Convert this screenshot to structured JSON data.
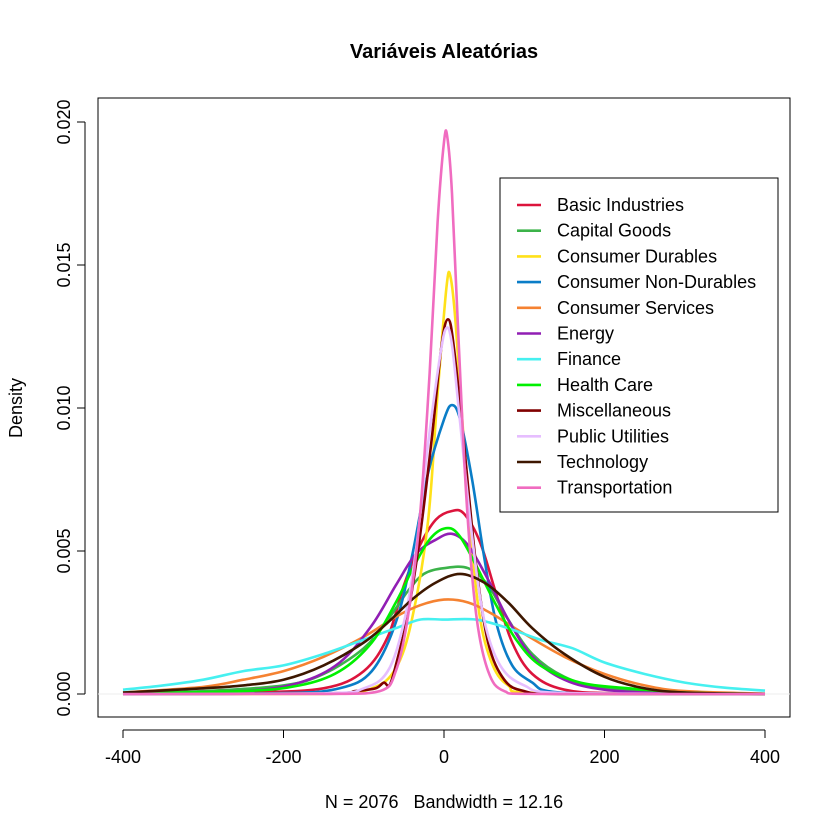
{
  "chart_data": {
    "type": "line",
    "title": "Variáveis Aleatórias",
    "xlabel": "N = 2076   Bandwidth = 12.16",
    "ylabel": "Density",
    "xlim": [
      -400,
      400
    ],
    "ylim": [
      0,
      0.02
    ],
    "x_ticks": [
      "-400",
      "-200",
      "0",
      "200",
      "400"
    ],
    "y_ticks": [
      "0.000",
      "0.005",
      "0.010",
      "0.015",
      "0.020"
    ],
    "grid": false,
    "legend_position": "top-right",
    "series": [
      {
        "name": "Basic Industries",
        "color": "#DC143C",
        "points": [
          [
            -400,
            0
          ],
          [
            -250,
            5e-05
          ],
          [
            -150,
            0.0002
          ],
          [
            -100,
            0.0008
          ],
          [
            -70,
            0.002
          ],
          [
            -50,
            0.0038
          ],
          [
            -30,
            0.0052
          ],
          [
            -10,
            0.0061
          ],
          [
            10,
            0.0064
          ],
          [
            25,
            0.0063
          ],
          [
            45,
            0.0053
          ],
          [
            65,
            0.0035
          ],
          [
            85,
            0.0018
          ],
          [
            110,
            0.0007
          ],
          [
            150,
            0.00015
          ],
          [
            220,
            2e-05
          ],
          [
            400,
            0
          ]
        ]
      },
      {
        "name": "Capital Goods",
        "color": "#3CB34A",
        "points": [
          [
            -400,
            2e-05
          ],
          [
            -300,
            0.0001
          ],
          [
            -200,
            0.0003
          ],
          [
            -150,
            0.0007
          ],
          [
            -100,
            0.0016
          ],
          [
            -70,
            0.0026
          ],
          [
            -45,
            0.0036
          ],
          [
            -25,
            0.0042
          ],
          [
            0,
            0.0044
          ],
          [
            30,
            0.0044
          ],
          [
            55,
            0.0038
          ],
          [
            80,
            0.0026
          ],
          [
            110,
            0.0014
          ],
          [
            150,
            0.0006
          ],
          [
            200,
            0.0002
          ],
          [
            300,
            4e-05
          ],
          [
            400,
            0
          ]
        ]
      },
      {
        "name": "Consumer Durables",
        "color": "#FFE119",
        "points": [
          [
            -400,
            0
          ],
          [
            -150,
            0
          ],
          [
            -90,
            0.0002
          ],
          [
            -60,
            0.0009
          ],
          [
            -40,
            0.0026
          ],
          [
            -20,
            0.006
          ],
          [
            -8,
            0.0105
          ],
          [
            3,
            0.0142
          ],
          [
            8,
            0.0146
          ],
          [
            15,
            0.0128
          ],
          [
            28,
            0.0075
          ],
          [
            42,
            0.0032
          ],
          [
            58,
            0.0012
          ],
          [
            80,
            0.0003
          ],
          [
            120,
            3e-05
          ],
          [
            400,
            0
          ]
        ]
      },
      {
        "name": "Consumer Non-Durables",
        "color": "#0A7DC7",
        "points": [
          [
            -400,
            0
          ],
          [
            -200,
            3e-05
          ],
          [
            -130,
            0.0002
          ],
          [
            -90,
            0.0008
          ],
          [
            -60,
            0.0025
          ],
          [
            -40,
            0.0048
          ],
          [
            -20,
            0.0077
          ],
          [
            0,
            0.0096
          ],
          [
            10,
            0.0101
          ],
          [
            20,
            0.0096
          ],
          [
            35,
            0.0075
          ],
          [
            50,
            0.0048
          ],
          [
            65,
            0.0025
          ],
          [
            85,
            0.001
          ],
          [
            110,
            0.0004
          ],
          [
            130,
            0.0001
          ],
          [
            200,
            1e-05
          ],
          [
            400,
            0
          ]
        ]
      },
      {
        "name": "Consumer Services",
        "color": "#F58231",
        "points": [
          [
            -400,
            5e-05
          ],
          [
            -300,
            0.00025
          ],
          [
            -250,
            0.0005
          ],
          [
            -200,
            0.0008
          ],
          [
            -150,
            0.0013
          ],
          [
            -100,
            0.002
          ],
          [
            -60,
            0.0027
          ],
          [
            -30,
            0.0031
          ],
          [
            0,
            0.0033
          ],
          [
            30,
            0.0032
          ],
          [
            60,
            0.0028
          ],
          [
            100,
            0.0021
          ],
          [
            150,
            0.0013
          ],
          [
            200,
            0.0007
          ],
          [
            250,
            0.0003
          ],
          [
            300,
            0.0001
          ],
          [
            400,
            1e-05
          ]
        ]
      },
      {
        "name": "Energy",
        "color": "#911EB4",
        "points": [
          [
            -400,
            0
          ],
          [
            -250,
            0.0001
          ],
          [
            -180,
            0.0004
          ],
          [
            -130,
            0.0011
          ],
          [
            -90,
            0.0024
          ],
          [
            -60,
            0.0038
          ],
          [
            -35,
            0.0049
          ],
          [
            -10,
            0.0054
          ],
          [
            10,
            0.0056
          ],
          [
            30,
            0.0052
          ],
          [
            55,
            0.004
          ],
          [
            80,
            0.0026
          ],
          [
            110,
            0.0013
          ],
          [
            150,
            0.0005
          ],
          [
            200,
            0.00015
          ],
          [
            280,
            2e-05
          ],
          [
            400,
            0
          ]
        ]
      },
      {
        "name": "Finance",
        "color": "#46F0F0",
        "points": [
          [
            -400,
            0.00015
          ],
          [
            -350,
            0.0003
          ],
          [
            -300,
            0.0005
          ],
          [
            -250,
            0.0008
          ],
          [
            -200,
            0.001
          ],
          [
            -150,
            0.0014
          ],
          [
            -100,
            0.0019
          ],
          [
            -60,
            0.0023
          ],
          [
            -30,
            0.0026
          ],
          [
            0,
            0.0026
          ],
          [
            40,
            0.0026
          ],
          [
            80,
            0.0023
          ],
          [
            120,
            0.0019
          ],
          [
            160,
            0.0016
          ],
          [
            200,
            0.0011
          ],
          [
            250,
            0.0007
          ],
          [
            300,
            0.0004
          ],
          [
            350,
            0.00022
          ],
          [
            400,
            0.00012
          ]
        ]
      },
      {
        "name": "Health Care",
        "color": "#00F000",
        "points": [
          [
            -400,
            2e-05
          ],
          [
            -250,
            0.0001
          ],
          [
            -180,
            0.0003
          ],
          [
            -130,
            0.0008
          ],
          [
            -90,
            0.0018
          ],
          [
            -60,
            0.0032
          ],
          [
            -35,
            0.0046
          ],
          [
            -15,
            0.0055
          ],
          [
            5,
            0.0058
          ],
          [
            20,
            0.0055
          ],
          [
            40,
            0.0045
          ],
          [
            65,
            0.0031
          ],
          [
            90,
            0.0019
          ],
          [
            120,
            0.001
          ],
          [
            170,
            0.0004
          ],
          [
            230,
            0.0002
          ],
          [
            300,
            5e-05
          ],
          [
            400,
            0
          ]
        ]
      },
      {
        "name": "Miscellaneous",
        "color": "#800000",
        "points": [
          [
            -400,
            0
          ],
          [
            -150,
            2e-05
          ],
          [
            -110,
            0.0001
          ],
          [
            -85,
            0.0002
          ],
          [
            -75,
            0.0004
          ],
          [
            -68,
            0.0003
          ],
          [
            -60,
            0.001
          ],
          [
            -45,
            0.0028
          ],
          [
            -30,
            0.0055
          ],
          [
            -15,
            0.009
          ],
          [
            -3,
            0.0122
          ],
          [
            5,
            0.0131
          ],
          [
            12,
            0.0122
          ],
          [
            25,
            0.0087
          ],
          [
            40,
            0.0045
          ],
          [
            55,
            0.0018
          ],
          [
            75,
            0.0005
          ],
          [
            100,
            0.0001
          ],
          [
            150,
            0
          ],
          [
            400,
            0
          ]
        ]
      },
      {
        "name": "Public Utilities",
        "color": "#E6BEFF",
        "points": [
          [
            -400,
            0
          ],
          [
            -150,
            2e-05
          ],
          [
            -100,
            0.0002
          ],
          [
            -70,
            0.0008
          ],
          [
            -50,
            0.0025
          ],
          [
            -35,
            0.005
          ],
          [
            -20,
            0.0087
          ],
          [
            -5,
            0.0118
          ],
          [
            3,
            0.0128
          ],
          [
            10,
            0.0122
          ],
          [
            20,
            0.0095
          ],
          [
            35,
            0.0055
          ],
          [
            50,
            0.0026
          ],
          [
            70,
            0.001
          ],
          [
            100,
            0.0003
          ],
          [
            150,
            3e-05
          ],
          [
            400,
            0
          ]
        ]
      },
      {
        "name": "Technology",
        "color": "#3D1700",
        "points": [
          [
            -400,
            5e-05
          ],
          [
            -300,
            0.0002
          ],
          [
            -250,
            0.0003
          ],
          [
            -200,
            0.0005
          ],
          [
            -150,
            0.001
          ],
          [
            -100,
            0.0018
          ],
          [
            -70,
            0.0025
          ],
          [
            -40,
            0.0033
          ],
          [
            -10,
            0.0039
          ],
          [
            20,
            0.0042
          ],
          [
            50,
            0.0039
          ],
          [
            80,
            0.0032
          ],
          [
            110,
            0.0023
          ],
          [
            150,
            0.0014
          ],
          [
            200,
            0.0006
          ],
          [
            250,
            0.0002
          ],
          [
            300,
            5e-05
          ],
          [
            400,
            0
          ]
        ]
      },
      {
        "name": "Transportation",
        "color": "#F06CC0",
        "points": [
          [
            -400,
            0
          ],
          [
            -150,
            0
          ],
          [
            -80,
            0.0001
          ],
          [
            -60,
            0.0008
          ],
          [
            -45,
            0.0027
          ],
          [
            -30,
            0.0062
          ],
          [
            -18,
            0.0112
          ],
          [
            -8,
            0.0165
          ],
          [
            0,
            0.0193
          ],
          [
            4,
            0.0195
          ],
          [
            10,
            0.0175
          ],
          [
            18,
            0.0125
          ],
          [
            28,
            0.0068
          ],
          [
            40,
            0.0028
          ],
          [
            55,
            0.0008
          ],
          [
            75,
            0.0001
          ],
          [
            120,
            0
          ],
          [
            400,
            0
          ]
        ]
      }
    ]
  }
}
